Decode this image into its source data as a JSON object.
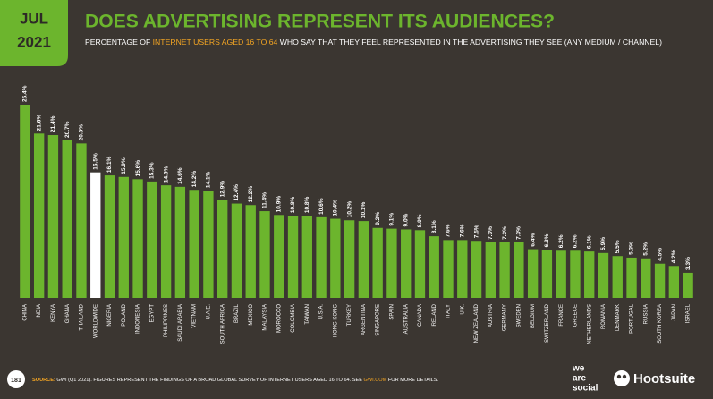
{
  "header": {
    "month": "JUL",
    "year": "2021"
  },
  "chart_data": {
    "type": "bar",
    "title": "DOES ADVERTISING REPRESENT ITS AUDIENCES?",
    "subtitle": [
      "PERCENTAGE OF ",
      "INTERNET USERS AGED 16 TO 64",
      " WHO SAY THAT THEY FEEL REPRESENTED IN THE ADVERTISING THEY SEE (ANY MEDIUM / CHANNEL)"
    ],
    "categories": [
      "CHINA",
      "INDIA",
      "KENYA",
      "GHANA",
      "THAILAND",
      "WORLDWIDE",
      "NIGERIA",
      "POLAND",
      "INDONESIA",
      "EGYPT",
      "PHILIPPINES",
      "SAUDI ARABIA",
      "VIETNAM",
      "U.A.E.",
      "SOUTH AFRICA",
      "BRAZIL",
      "MEXICO",
      "MALAYSIA",
      "MOROCCO",
      "COLOMBIA",
      "TAIWAN",
      "U.S.A.",
      "HONG KONG",
      "TURKEY",
      "ARGENTINA",
      "SINGAPORE",
      "SPAIN",
      "AUSTRALIA",
      "CANADA",
      "IRELAND",
      "ITALY",
      "U.K.",
      "NEW ZEALAND",
      "AUSTRIA",
      "GERMANY",
      "SWEDEN",
      "BELGIUM",
      "SWITZERLAND",
      "FRANCE",
      "GREECE",
      "NETHERLANDS",
      "ROMANIA",
      "DENMARK",
      "PORTUGAL",
      "RUSSIA",
      "SOUTH KOREA",
      "JAPAN",
      "ISRAEL"
    ],
    "values": [
      25.4,
      21.6,
      21.4,
      20.7,
      20.3,
      16.5,
      16.1,
      15.9,
      15.6,
      15.3,
      14.8,
      14.6,
      14.2,
      14.1,
      12.9,
      12.4,
      12.2,
      11.4,
      10.9,
      10.8,
      10.8,
      10.6,
      10.4,
      10.2,
      10.1,
      9.2,
      9.1,
      9.0,
      8.9,
      8.1,
      7.6,
      7.6,
      7.5,
      7.3,
      7.3,
      7.3,
      6.4,
      6.3,
      6.2,
      6.2,
      6.1,
      5.9,
      5.5,
      5.3,
      5.2,
      4.5,
      4.2,
      3.3
    ],
    "value_labels": [
      "25.4%",
      "21.6%",
      "21.4%",
      "20.7%",
      "20.3%",
      "16.5%",
      "16.1%",
      "15.9%",
      "15.6%",
      "15.3%",
      "14.8%",
      "14.6%",
      "14.2%",
      "14.1%",
      "12.9%",
      "12.4%",
      "12.2%",
      "11.4%",
      "10.9%",
      "10.8%",
      "10.8%",
      "10.6%",
      "10.4%",
      "10.2%",
      "10.1%",
      "9.2%",
      "9.1%",
      "9.0%",
      "8.9%",
      "8.1%",
      "7.6%",
      "7.6%",
      "7.5%",
      "7.3%",
      "7.3%",
      "7.3%",
      "6.4%",
      "6.3%",
      "6.2%",
      "6.2%",
      "6.1%",
      "5.9%",
      "5.5%",
      "5.3%",
      "5.2%",
      "4.5%",
      "4.2%",
      "3.3%"
    ],
    "colors": [
      "#6cb52d",
      "#6cb52d",
      "#6cb52d",
      "#6cb52d",
      "#6cb52d",
      "#ffffff",
      "#6cb52d",
      "#6cb52d",
      "#6cb52d",
      "#6cb52d",
      "#6cb52d",
      "#6cb52d",
      "#6cb52d",
      "#6cb52d",
      "#6cb52d",
      "#6cb52d",
      "#6cb52d",
      "#6cb52d",
      "#6cb52d",
      "#6cb52d",
      "#6cb52d",
      "#6cb52d",
      "#6cb52d",
      "#6cb52d",
      "#6cb52d",
      "#6cb52d",
      "#6cb52d",
      "#6cb52d",
      "#6cb52d",
      "#6cb52d",
      "#6cb52d",
      "#6cb52d",
      "#6cb52d",
      "#6cb52d",
      "#6cb52d",
      "#6cb52d",
      "#6cb52d",
      "#6cb52d",
      "#6cb52d",
      "#6cb52d",
      "#6cb52d",
      "#6cb52d",
      "#6cb52d",
      "#6cb52d",
      "#6cb52d",
      "#6cb52d",
      "#6cb52d",
      "#6cb52d"
    ],
    "ylim": [
      0,
      25.4
    ]
  },
  "footer": {
    "page": "181",
    "source": [
      "SOURCE:",
      " GWI (Q1 2021). FIGURES REPRESENT THE FINDINGS OF A BROAD GLOBAL SURVEY OF INTERNET USERS AGED 16 TO 64. SEE ",
      "GWI.COM",
      " FOR MORE DETAILS."
    ],
    "logos": {
      "we_are_social": [
        "we",
        "are",
        "social"
      ],
      "hootsuite": "Hootsuite"
    }
  }
}
